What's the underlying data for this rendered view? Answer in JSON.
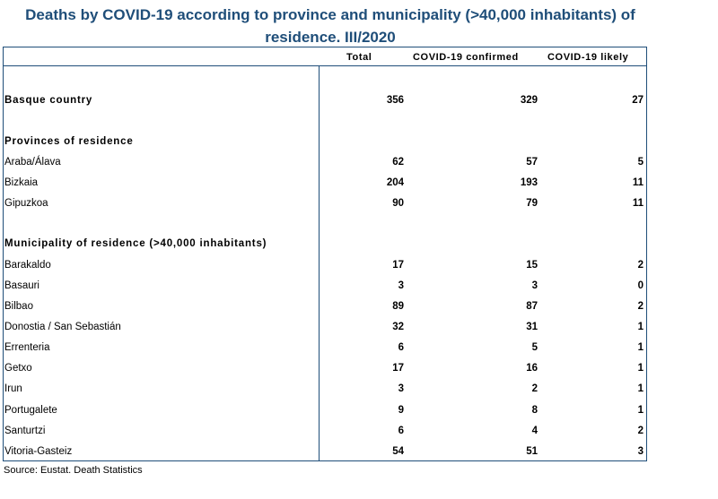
{
  "title": {
    "line1": "Deaths by COVID-19 according to province and municipality (>40,000 inhabitants) of",
    "line2": "residence.  III/2020"
  },
  "columns": [
    "Total",
    "COVID-19 confirmed",
    "COVID-19 likely"
  ],
  "rows": [
    {
      "label": "Basque country",
      "values": [
        "356",
        "329",
        "27"
      ]
    },
    {
      "label": "Provinces of residence"
    },
    {
      "label": "Araba/Álava",
      "values": [
        "62",
        "57",
        "5"
      ]
    },
    {
      "label": "Bizkaia",
      "values": [
        "204",
        "193",
        "11"
      ]
    },
    {
      "label": "Gipuzkoa",
      "values": [
        "90",
        "79",
        "11"
      ]
    },
    {
      "label": "Municipality of residence (>40,000 inhabitants)"
    },
    {
      "label": "Barakaldo",
      "values": [
        "17",
        "15",
        "2"
      ]
    },
    {
      "label": "Basauri",
      "values": [
        "3",
        "3",
        "0"
      ]
    },
    {
      "label": "Bilbao",
      "values": [
        "89",
        "87",
        "2"
      ]
    },
    {
      "label": "Donostia / San Sebastián",
      "values": [
        "32",
        "31",
        "1"
      ]
    },
    {
      "label": "Errenteria",
      "values": [
        "6",
        "5",
        "1"
      ]
    },
    {
      "label": "Getxo",
      "values": [
        "17",
        "16",
        "1"
      ]
    },
    {
      "label": "Irun",
      "values": [
        "3",
        "2",
        "1"
      ]
    },
    {
      "label": "Portugalete",
      "values": [
        "9",
        "8",
        "1"
      ]
    },
    {
      "label": "Santurtzi",
      "values": [
        "6",
        "4",
        "2"
      ]
    },
    {
      "label": "Vitoria-Gasteiz",
      "values": [
        "54",
        "51",
        "3"
      ]
    }
  ],
  "source": "Source: Eustat. Death Statistics"
}
